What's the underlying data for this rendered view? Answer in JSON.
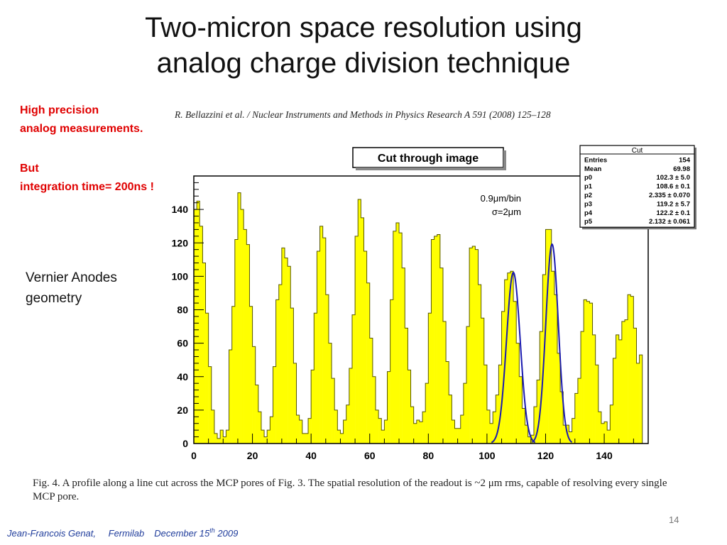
{
  "slide": {
    "title_line1": "Two-micron space resolution using",
    "title_line2": "analog charge division technique",
    "note_line1": "High precision",
    "note_line2": "analog measurements.",
    "note_line3": "But",
    "note_line4": "integration time= 200ns !",
    "vernier_line1": "Vernier Anodes",
    "vernier_line2": "geometry",
    "citation": "R. Bellazzini et al. / Nuclear Instruments and Methods in Physics Research A 591 (2008) 125–128",
    "caption": "Fig. 4.  A profile along a line cut across the MCP pores of Fig. 3. The spatial resolution of the readout is ~2 μm rms, capable of resolving every single MCP pore.",
    "page_number": "14",
    "footer_author": "Jean-Francois Genat,",
    "footer_lab": "Fermilab",
    "footer_date_pre": "December 15",
    "footer_date_sup": "th",
    "footer_year": "2009"
  },
  "chart_data": {
    "type": "bar",
    "title": "Cut through image",
    "annotation_line1": "0.9μm/bin",
    "annotation_line2": "σ=2μm",
    "xlim": [
      0,
      155
    ],
    "ylim": [
      0,
      160
    ],
    "x_ticks": [
      0,
      20,
      40,
      60,
      80,
      100,
      120,
      140
    ],
    "y_ticks": [
      0,
      20,
      40,
      60,
      80,
      100,
      120,
      140
    ],
    "bin_width": 1,
    "values": [
      140,
      145,
      130,
      108,
      78,
      46,
      20,
      6,
      3,
      8,
      4,
      8,
      56,
      82,
      122,
      150,
      140,
      128,
      119,
      82,
      58,
      35,
      19,
      8,
      4,
      8,
      16,
      46,
      86,
      95,
      117,
      111,
      106,
      81,
      48,
      17,
      14,
      6,
      6,
      15,
      44,
      78,
      115,
      130,
      123,
      89,
      60,
      39,
      20,
      8,
      6,
      14,
      23,
      45,
      77,
      124,
      146,
      135,
      115,
      96,
      63,
      40,
      20,
      15,
      8,
      14,
      43,
      86,
      127,
      132,
      126,
      105,
      69,
      44,
      22,
      12,
      14,
      13,
      19,
      36,
      78,
      122,
      124,
      125,
      105,
      73,
      49,
      29,
      14,
      9,
      9,
      17,
      36,
      70,
      117,
      118,
      116,
      95,
      75,
      47,
      20,
      12,
      19,
      29,
      47,
      79,
      98,
      102,
      103,
      85,
      60,
      40,
      21,
      11,
      4,
      5,
      22,
      38,
      67,
      101,
      128,
      128,
      103,
      89,
      54,
      31,
      11,
      11,
      7,
      15,
      30,
      39,
      67,
      86,
      85,
      84,
      65,
      47,
      19,
      12,
      13,
      8,
      23,
      51,
      65,
      62,
      73,
      74,
      89,
      88,
      69,
      48,
      53
    ],
    "fits": [
      {
        "mu": 109,
        "sigma": 2.33,
        "amp": 102.3
      },
      {
        "mu": 122.2,
        "sigma": 2.13,
        "amp": 119.2
      }
    ],
    "stats_box": {
      "title": "Cut",
      "rows": [
        [
          "Entries",
          "154"
        ],
        [
          "Mean",
          "69.98"
        ],
        [
          "p0",
          "102.3 ± 5.0"
        ],
        [
          "p1",
          "108.6 ± 0.1"
        ],
        [
          "p2",
          "2.335 ± 0.070"
        ],
        [
          "p3",
          "119.2 ± 5.7"
        ],
        [
          "p4",
          "122.2 ± 0.1"
        ],
        [
          "p5",
          "2.132 ± 0.061"
        ]
      ]
    },
    "colors": {
      "fill": "#ffff00",
      "outline": "#555500",
      "fit": "#1a1ab0",
      "frame": "#000000"
    }
  }
}
